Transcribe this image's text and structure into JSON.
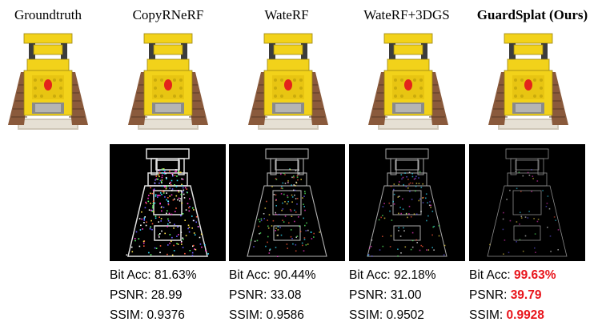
{
  "columns": [
    {
      "title": "Groundtruth",
      "bold": false,
      "has_diff": false
    },
    {
      "title": "CopyRNeRF",
      "bold": false,
      "has_diff": true,
      "metrics": {
        "bit_acc": "81.63%",
        "psnr": "28.99",
        "ssim": "0.9376"
      }
    },
    {
      "title": "WateRF",
      "bold": false,
      "has_diff": true,
      "metrics": {
        "bit_acc": "90.44%",
        "psnr": "33.08",
        "ssim": "0.9586"
      }
    },
    {
      "title": "WateRF+3DGS",
      "bold": false,
      "has_diff": true,
      "metrics": {
        "bit_acc": "92.18%",
        "psnr": "31.00",
        "ssim": "0.9502"
      }
    },
    {
      "title": "GuardSplat (Ours)",
      "bold": true,
      "has_diff": true,
      "metrics": {
        "bit_acc": "99.63%",
        "psnr": "39.79",
        "ssim": "0.9928"
      }
    }
  ],
  "labels": {
    "bit_acc": "Bit Acc:",
    "psnr": "PSNR:",
    "ssim": "SSIM:"
  },
  "colors": {
    "highlight": "#e8141b",
    "lego_yellow": "#f2d21a",
    "tread_brown": "#8a5a3c",
    "diff_bg": "#000000"
  }
}
